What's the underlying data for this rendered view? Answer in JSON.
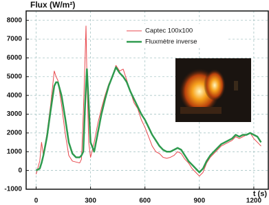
{
  "chart_data": {
    "type": "line",
    "title": "Flux (W/m²)",
    "x_label": "t (s)",
    "x": [
      0,
      20,
      30,
      40,
      60,
      80,
      100,
      110,
      120,
      140,
      160,
      180,
      200,
      220,
      240,
      250,
      260,
      270,
      275,
      280,
      290,
      300,
      320,
      340,
      360,
      380,
      400,
      420,
      440,
      460,
      480,
      500,
      520,
      540,
      560,
      580,
      600,
      620,
      640,
      660,
      680,
      700,
      720,
      740,
      760,
      780,
      800,
      820,
      840,
      860,
      880,
      900,
      920,
      940,
      960,
      980,
      1000,
      1020,
      1040,
      1060,
      1080,
      1100,
      1120,
      1140,
      1160,
      1180,
      1200,
      1220,
      1240
    ],
    "series": [
      {
        "name": "Captec 100x100",
        "color": "#e8474c",
        "width": 1,
        "values": [
          -200,
          500,
          1500,
          800,
          2000,
          3500,
          5300,
          5000,
          4800,
          3500,
          2000,
          800,
          500,
          450,
          400,
          600,
          3000,
          6000,
          7700,
          5000,
          1500,
          700,
          1500,
          2500,
          3300,
          4000,
          4600,
          5000,
          5600,
          5300,
          5400,
          4800,
          4200,
          3600,
          3300,
          2700,
          2300,
          1800,
          1300,
          1000,
          900,
          700,
          650,
          700,
          800,
          1000,
          900,
          600,
          400,
          100,
          -100,
          -300,
          -100,
          400,
          700,
          900,
          1100,
          1300,
          1400,
          1500,
          1600,
          1800,
          1700,
          1800,
          1900,
          2000,
          1700,
          1500,
          1300
        ]
      },
      {
        "name": "Fluxmètre inverse",
        "color": "#2e9a4e",
        "width": 2.5,
        "values": [
          0,
          100,
          400,
          800,
          1800,
          3200,
          4500,
          4700,
          4700,
          4000,
          2800,
          1500,
          900,
          700,
          700,
          800,
          1000,
          3500,
          4500,
          5400,
          3500,
          1500,
          1000,
          2000,
          3000,
          3800,
          4500,
          5000,
          5500,
          5200,
          5000,
          4700,
          4200,
          3800,
          3400,
          3000,
          2700,
          2300,
          1900,
          1600,
          1300,
          1100,
          1000,
          1000,
          1100,
          1200,
          1100,
          800,
          500,
          300,
          100,
          -100,
          100,
          500,
          800,
          1000,
          1200,
          1400,
          1500,
          1600,
          1700,
          1900,
          1800,
          1900,
          1900,
          2000,
          1900,
          1800,
          1500
        ]
      }
    ],
    "xlim": [
      -55,
      1280
    ],
    "xticks": [
      0,
      300,
      600,
      900,
      1200
    ],
    "ylim": [
      -1000,
      8500
    ],
    "yticks": [
      -1000,
      0,
      1000,
      2000,
      3000,
      4000,
      5000,
      6000,
      7000,
      8000
    ],
    "grid": true
  }
}
